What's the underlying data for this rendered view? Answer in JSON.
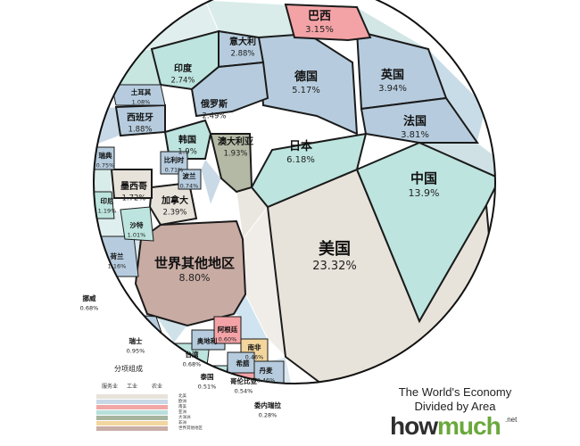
{
  "chart_data": {
    "type": "voronoi-treemap",
    "title": "The World's Economy Divided by Area",
    "unit": "% of world GDP",
    "cells": [
      {
        "label": "美国",
        "value": "23.32%",
        "region": "north-america",
        "size": "xl"
      },
      {
        "label": "中国",
        "value": "13.9%",
        "region": "asia",
        "size": "l"
      },
      {
        "label": "世界其他地区",
        "value": "8.80%",
        "region": "rest",
        "size": "l"
      },
      {
        "label": "日本",
        "value": "6.18%",
        "region": "asia",
        "size": "m"
      },
      {
        "label": "德国",
        "value": "5.17%",
        "region": "europe",
        "size": "m"
      },
      {
        "label": "英国",
        "value": "3.94%",
        "region": "europe",
        "size": "m"
      },
      {
        "label": "法国",
        "value": "3.81%",
        "region": "europe",
        "size": "m"
      },
      {
        "label": "巴西",
        "value": "3.15%",
        "region": "south-america",
        "size": "m"
      },
      {
        "label": "意大利",
        "value": "2.88%",
        "region": "europe",
        "size": "s"
      },
      {
        "label": "印度",
        "value": "2.74%",
        "region": "asia",
        "size": "s"
      },
      {
        "label": "俄罗斯",
        "value": "2.49%",
        "region": "europe",
        "size": "s"
      },
      {
        "label": "加拿大",
        "value": "2.39%",
        "region": "north-america",
        "size": "s"
      },
      {
        "label": "澳大利亚",
        "value": "1.93%",
        "region": "oceania",
        "size": "s"
      },
      {
        "label": "韩国",
        "value": "1.9%",
        "region": "asia",
        "size": "s"
      },
      {
        "label": "西班牙",
        "value": "1.88%",
        "region": "europe",
        "size": "s"
      },
      {
        "label": "墨西哥",
        "value": "1.72%",
        "region": "north-america",
        "size": "s"
      },
      {
        "label": "荷兰",
        "value": "1.16%",
        "region": "europe",
        "size": "xs"
      },
      {
        "label": "印尼",
        "value": "1.19%",
        "region": "asia",
        "size": "xs"
      },
      {
        "label": "土耳其",
        "value": "1.08%",
        "region": "europe",
        "size": "xs"
      },
      {
        "label": "沙特",
        "value": "1.01%",
        "region": "asia",
        "size": "xs"
      },
      {
        "label": "瑞士",
        "value": "0.95%",
        "region": "europe",
        "size": "xs"
      },
      {
        "label": "瑞典",
        "value": "0.75%",
        "region": "europe",
        "size": "xs"
      },
      {
        "label": "比利时",
        "value": "0.71%",
        "region": "europe",
        "size": "xs"
      },
      {
        "label": "波兰",
        "value": "0.74%",
        "region": "europe",
        "size": "xs"
      },
      {
        "label": "挪威",
        "value": "0.68%",
        "region": "europe",
        "size": "xs"
      },
      {
        "label": "台湾",
        "value": "0.68%",
        "region": "asia",
        "size": "xs"
      },
      {
        "label": "奥地利",
        "value": "",
        "region": "europe",
        "size": "xs"
      },
      {
        "label": "阿根廷",
        "value": "0.60%",
        "region": "south-america",
        "size": "xs"
      },
      {
        "label": "泰国",
        "value": "0.51%",
        "region": "asia",
        "size": "xs"
      },
      {
        "label": "南非",
        "value": "0.46%",
        "region": "africa",
        "size": "xs"
      },
      {
        "label": "丹麦",
        "value": "0.46%",
        "region": "europe",
        "size": "xs"
      },
      {
        "label": "希腊",
        "value": "",
        "region": "europe",
        "size": "xs"
      },
      {
        "label": "哥伦比亚",
        "value": "0.54%",
        "region": "south-america",
        "size": "xs"
      },
      {
        "label": "委内瑞拉",
        "value": "0.28%",
        "region": "south-america",
        "size": "xs"
      }
    ],
    "legend": {
      "title": "分项组成",
      "columns": [
        "服务业",
        "工业",
        "农业"
      ],
      "rows": [
        {
          "label": "北美",
          "color": "#e7e2da"
        },
        {
          "label": "欧洲",
          "color": "#c8d8e6"
        },
        {
          "label": "南美",
          "color": "#f2a7a7"
        },
        {
          "label": "亚洲",
          "color": "#b9dfdb"
        },
        {
          "label": "大洋洲",
          "color": "#a7b49e"
        },
        {
          "label": "非洲",
          "color": "#f2d6a0"
        },
        {
          "label": "世界其他地区",
          "color": "#c9aea6"
        }
      ]
    },
    "colors": {
      "north-america": "#e8e3da",
      "europe": "#b6ccde",
      "south-america": "#f3a3a6",
      "asia": "#bde4df",
      "oceania": "#b3b9a4",
      "africa": "#f3d69e",
      "rest": "#c8aba3"
    }
  },
  "branding": {
    "how": "how",
    "much": "much",
    "net": ".net"
  }
}
